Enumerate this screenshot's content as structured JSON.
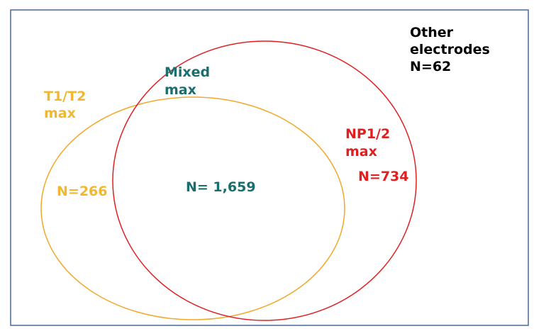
{
  "labels": {
    "other_line1": "Other",
    "other_line2": "electrodes",
    "other_n": "N=62",
    "t1t2_line1": "T1/T2",
    "t1t2_line2": "max",
    "t1t2_n": "N=266",
    "mixed_line1": "Mixed",
    "mixed_line2": "max",
    "mixed_n": "N= 1,659",
    "np_line1": "NP1/2",
    "np_line2": "max",
    "np_n": "N=734"
  },
  "colors": {
    "t1t2": "#f0a92a",
    "np": "#e02020",
    "mixed": "#1a6e6e",
    "frame": "#4a6a9a",
    "other": "#000000"
  }
}
